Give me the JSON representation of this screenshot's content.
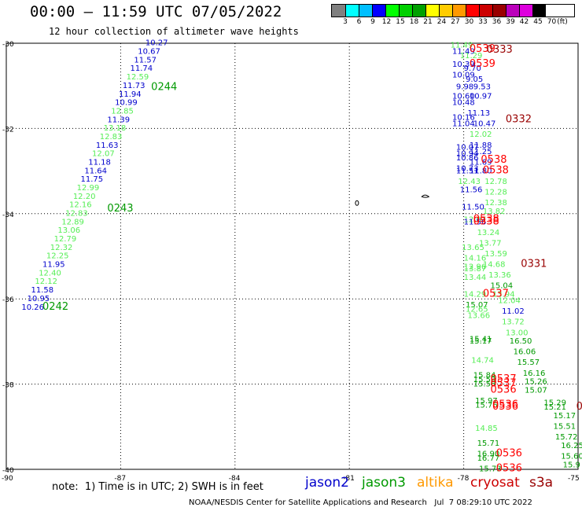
{
  "header": {
    "title": "00:00 – 11:59 UTC 07/05/2022",
    "subtitle": "12 hour collection of altimeter wave heights"
  },
  "color_scale": {
    "unit_label": "(ft)",
    "labels": [
      "3",
      "6",
      "9",
      "12",
      "15",
      "18",
      "21",
      "24",
      "27",
      "30",
      "33",
      "36",
      "39",
      "42",
      "45",
      "70"
    ],
    "colors": [
      "#808080",
      "#00ffff",
      "#00bfff",
      "#0000ff",
      "#00ff00",
      "#00d000",
      "#00a000",
      "#ffff00",
      "#ffcc00",
      "#ff9900",
      "#ff0000",
      "#cc0000",
      "#990000",
      "#bb00bb",
      "#dd00dd",
      "#000000"
    ]
  },
  "axes": {
    "lat_labels": [
      "-30",
      "-32",
      "-34",
      "-36",
      "-38",
      "-40"
    ],
    "lon_labels": [
      "-90",
      "-87",
      "-84",
      "-81",
      "-78",
      "-75"
    ]
  },
  "footer": {
    "note": "note:  1) Time is in UTC; 2) SWH is in feet",
    "legend": [
      {
        "name": "jason2",
        "color": "#0000cc"
      },
      {
        "name": "jason3",
        "color": "#009900"
      },
      {
        "name": "altika",
        "color": "#ff9900"
      },
      {
        "name": "cryosat",
        "color": "#cc0000"
      },
      {
        "name": "s3a",
        "color": "#990000"
      }
    ],
    "credit": "NOAA/NESDIS Center for Satellite Applications and Research   Jul  7 08:29:10 UTC 2022"
  },
  "map": {
    "lon_range": [
      -90,
      -75
    ],
    "lat_range": [
      -40,
      -30
    ],
    "tracks": [
      {
        "id": "west-track",
        "points": [
          {
            "lon": -86.35,
            "lat": -30.05,
            "v": "10.27",
            "c": "#0000cc"
          },
          {
            "lon": -86.55,
            "lat": -30.25,
            "v": "10.67",
            "c": "#0000cc"
          },
          {
            "lon": -86.65,
            "lat": -30.45,
            "v": "11.57",
            "c": "#0000cc"
          },
          {
            "lon": -86.75,
            "lat": -30.65,
            "v": "11.74",
            "c": "#0000cc"
          },
          {
            "lon": -86.85,
            "lat": -30.85,
            "v": "12.59",
            "c": "#55ee55"
          },
          {
            "lon": -86.95,
            "lat": -31.05,
            "v": "11.73",
            "c": "#0000cc"
          },
          {
            "lon": -87.05,
            "lat": -31.25,
            "v": "11.94",
            "c": "#0000cc"
          },
          {
            "lon": -87.15,
            "lat": -31.45,
            "v": "10.99",
            "c": "#0000cc"
          },
          {
            "lon": -87.25,
            "lat": -31.65,
            "v": "12.85",
            "c": "#55ee55"
          },
          {
            "lon": -87.35,
            "lat": -31.85,
            "v": "11.39",
            "c": "#0000cc"
          },
          {
            "lon": -87.45,
            "lat": -32.05,
            "v": "13.18",
            "c": "#55ee55"
          },
          {
            "lon": -87.55,
            "lat": -32.25,
            "v": "12.83",
            "c": "#55ee55"
          },
          {
            "lon": -87.65,
            "lat": -32.45,
            "v": "11.63",
            "c": "#0000cc"
          },
          {
            "lon": -87.75,
            "lat": -32.65,
            "v": "12.07",
            "c": "#55ee55"
          },
          {
            "lon": -87.85,
            "lat": -32.85,
            "v": "11.18",
            "c": "#0000cc"
          },
          {
            "lon": -87.95,
            "lat": -33.05,
            "v": "11.64",
            "c": "#0000cc"
          },
          {
            "lon": -88.05,
            "lat": -33.25,
            "v": "11.75",
            "c": "#0000cc"
          },
          {
            "lon": -88.15,
            "lat": -33.45,
            "v": "12.99",
            "c": "#55ee55"
          },
          {
            "lon": -88.25,
            "lat": -33.65,
            "v": "12.20",
            "c": "#55ee55"
          },
          {
            "lon": -88.35,
            "lat": -33.85,
            "v": "12.16",
            "c": "#55ee55"
          },
          {
            "lon": -88.45,
            "lat": -34.05,
            "v": "12.83",
            "c": "#55ee55"
          },
          {
            "lon": -88.55,
            "lat": -34.25,
            "v": "12.89",
            "c": "#55ee55"
          },
          {
            "lon": -88.65,
            "lat": -34.45,
            "v": "13.06",
            "c": "#55ee55"
          },
          {
            "lon": -88.75,
            "lat": -34.65,
            "v": "12.79",
            "c": "#55ee55"
          },
          {
            "lon": -88.85,
            "lat": -34.85,
            "v": "12.32",
            "c": "#55ee55"
          },
          {
            "lon": -88.95,
            "lat": -35.05,
            "v": "12.25",
            "c": "#55ee55"
          },
          {
            "lon": -89.05,
            "lat": -35.25,
            "v": "11.95",
            "c": "#0000cc"
          },
          {
            "lon": -89.15,
            "lat": -35.45,
            "v": "12.40",
            "c": "#55ee55"
          },
          {
            "lon": -89.25,
            "lat": -35.65,
            "v": "12.12",
            "c": "#55ee55"
          },
          {
            "lon": -89.35,
            "lat": -35.85,
            "v": "11.58",
            "c": "#0000cc"
          },
          {
            "lon": -89.45,
            "lat": -36.05,
            "v": "10.95",
            "c": "#0000cc"
          },
          {
            "lon": -89.6,
            "lat": -36.25,
            "v": "10.26",
            "c": "#0000cc"
          }
        ],
        "times": [
          {
            "lon": -86.2,
            "lat": -31.1,
            "t": "0244",
            "c": "#009900"
          },
          {
            "lon": -87.35,
            "lat": -33.95,
            "t": "0243",
            "c": "#009900"
          },
          {
            "lon": -89.05,
            "lat": -36.25,
            "t": "0242",
            "c": "#009900"
          }
        ]
      },
      {
        "id": "east-tracks",
        "points": [
          {
            "lon": -78.35,
            "lat": -30.1,
            "v": "11.49",
            "c": "#55ee55"
          },
          {
            "lon": -78.3,
            "lat": -30.25,
            "v": "11.49",
            "c": "#0000cc"
          },
          {
            "lon": -78.1,
            "lat": -30.35,
            "v": "11.29",
            "c": "#55ee55"
          },
          {
            "lon": -78.3,
            "lat": -30.55,
            "v": "10.39",
            "c": "#0000cc"
          },
          {
            "lon": -78.0,
            "lat": -30.65,
            "v": "9.70",
            "c": "#0000cc"
          },
          {
            "lon": -78.3,
            "lat": -30.8,
            "v": "10.09",
            "c": "#0000cc"
          },
          {
            "lon": -77.95,
            "lat": -30.9,
            "v": "9.05",
            "c": "#0000cc"
          },
          {
            "lon": -78.2,
            "lat": -31.08,
            "v": "9.98",
            "c": "#0000cc"
          },
          {
            "lon": -77.75,
            "lat": -31.08,
            "v": "9.53",
            "c": "#0000cc"
          },
          {
            "lon": -78.3,
            "lat": -31.3,
            "v": "10.60",
            "c": "#0000cc"
          },
          {
            "lon": -77.85,
            "lat": -31.3,
            "v": "10.97",
            "c": "#0000cc"
          },
          {
            "lon": -78.3,
            "lat": -31.45,
            "v": "10.48",
            "c": "#0000cc"
          },
          {
            "lon": -77.9,
            "lat": -31.7,
            "v": "11.13",
            "c": "#0000cc"
          },
          {
            "lon": -78.3,
            "lat": -31.8,
            "v": "10.16",
            "c": "#0000cc"
          },
          {
            "lon": -78.3,
            "lat": -31.95,
            "v": "11.04",
            "c": "#0000cc"
          },
          {
            "lon": -77.75,
            "lat": -31.95,
            "v": "10.47",
            "c": "#0000cc"
          },
          {
            "lon": -77.85,
            "lat": -32.2,
            "v": "12.02",
            "c": "#55ee55"
          },
          {
            "lon": -77.85,
            "lat": -32.45,
            "v": "11.88",
            "c": "#0000cc"
          },
          {
            "lon": -78.2,
            "lat": -32.5,
            "v": "10.07",
            "c": "#0000cc"
          },
          {
            "lon": -78.2,
            "lat": -32.65,
            "v": "10.94",
            "c": "#0000cc"
          },
          {
            "lon": -77.85,
            "lat": -32.6,
            "v": "11.25",
            "c": "#0000cc"
          },
          {
            "lon": -78.2,
            "lat": -32.75,
            "v": "10.86",
            "c": "#0000cc"
          },
          {
            "lon": -77.85,
            "lat": -32.85,
            "v": "11.69",
            "c": "#0000cc"
          },
          {
            "lon": -78.2,
            "lat": -33.0,
            "v": "10.73",
            "c": "#0000cc"
          },
          {
            "lon": -77.85,
            "lat": -33.05,
            "v": "11.80",
            "c": "#0000cc"
          },
          {
            "lon": -78.2,
            "lat": -33.05,
            "v": "11.51",
            "c": "#0000cc"
          },
          {
            "lon": -77.45,
            "lat": -33.3,
            "v": "12.78",
            "c": "#55ee55"
          },
          {
            "lon": -78.15,
            "lat": -33.3,
            "v": "12.43",
            "c": "#55ee55"
          },
          {
            "lon": -78.1,
            "lat": -33.5,
            "v": "11.56",
            "c": "#0000cc"
          },
          {
            "lon": -77.45,
            "lat": -33.55,
            "v": "12.28",
            "c": "#55ee55"
          },
          {
            "lon": -77.45,
            "lat": -33.8,
            "v": "12.38",
            "c": "#55ee55"
          },
          {
            "lon": -78.05,
            "lat": -33.9,
            "v": "11.50",
            "c": "#0000cc"
          },
          {
            "lon": -77.5,
            "lat": -34.0,
            "v": "13.82",
            "c": "#55ee55"
          },
          {
            "lon": -78.0,
            "lat": -34.2,
            "v": "12.07",
            "c": "#55ee55"
          },
          {
            "lon": -78.0,
            "lat": -34.25,
            "v": "11.56",
            "c": "#0000cc"
          },
          {
            "lon": -77.65,
            "lat": -34.5,
            "v": "13.24",
            "c": "#55ee55"
          },
          {
            "lon": -77.6,
            "lat": -34.75,
            "v": "13.77",
            "c": "#55ee55"
          },
          {
            "lon": -78.05,
            "lat": -34.85,
            "v": "13.65",
            "c": "#55ee55"
          },
          {
            "lon": -77.45,
            "lat": -35.0,
            "v": "13.59",
            "c": "#55ee55"
          },
          {
            "lon": -78.0,
            "lat": -35.1,
            "v": "14.16",
            "c": "#55ee55"
          },
          {
            "lon": -77.5,
            "lat": -35.25,
            "v": "14.68",
            "c": "#55ee55"
          },
          {
            "lon": -78.0,
            "lat": -35.3,
            "v": "12.96",
            "c": "#55ee55"
          },
          {
            "lon": -78.0,
            "lat": -35.35,
            "v": "13.87",
            "c": "#55ee55"
          },
          {
            "lon": -77.35,
            "lat": -35.5,
            "v": "13.36",
            "c": "#55ee55"
          },
          {
            "lon": -78.0,
            "lat": -35.55,
            "v": "13.44",
            "c": "#55ee55"
          },
          {
            "lon": -77.3,
            "lat": -35.75,
            "v": "15.04",
            "c": "#009900"
          },
          {
            "lon": -78.0,
            "lat": -35.95,
            "v": "14.29",
            "c": "#55ee55"
          },
          {
            "lon": -77.25,
            "lat": -35.95,
            "v": "13.94",
            "c": "#55ee55"
          },
          {
            "lon": -77.1,
            "lat": -36.1,
            "v": "12.04",
            "c": "#55ee55"
          },
          {
            "lon": -77.95,
            "lat": -36.2,
            "v": "15.07",
            "c": "#009900"
          },
          {
            "lon": -77.95,
            "lat": -36.3,
            "v": "12.65",
            "c": "#55ee55"
          },
          {
            "lon": -77.0,
            "lat": -36.35,
            "v": "11.02",
            "c": "#0000cc"
          },
          {
            "lon": -77.9,
            "lat": -36.45,
            "v": "13.66",
            "c": "#55ee55"
          },
          {
            "lon": -77.0,
            "lat": -36.6,
            "v": "13.72",
            "c": "#55ee55"
          },
          {
            "lon": -76.9,
            "lat": -36.85,
            "v": "13.00",
            "c": "#55ee55"
          },
          {
            "lon": -77.85,
            "lat": -37.0,
            "v": "15.41",
            "c": "#009900"
          },
          {
            "lon": -77.85,
            "lat": -37.05,
            "v": "15.17",
            "c": "#009900"
          },
          {
            "lon": -76.8,
            "lat": -37.05,
            "v": "16.50",
            "c": "#009900"
          },
          {
            "lon": -76.7,
            "lat": -37.3,
            "v": "16.06",
            "c": "#009900"
          },
          {
            "lon": -77.8,
            "lat": -37.5,
            "v": "14.74",
            "c": "#55ee55"
          },
          {
            "lon": -76.6,
            "lat": -37.55,
            "v": "15.57",
            "c": "#009900"
          },
          {
            "lon": -76.45,
            "lat": -37.8,
            "v": "16.16",
            "c": "#009900"
          },
          {
            "lon": -77.75,
            "lat": -37.85,
            "v": "15.84",
            "c": "#009900"
          },
          {
            "lon": -77.75,
            "lat": -37.95,
            "v": "15.59",
            "c": "#009900"
          },
          {
            "lon": -76.4,
            "lat": -38.0,
            "v": "15.26",
            "c": "#009900"
          },
          {
            "lon": -77.75,
            "lat": -38.05,
            "v": "15.58",
            "c": "#009900"
          },
          {
            "lon": -76.4,
            "lat": -38.2,
            "v": "15.07",
            "c": "#009900"
          },
          {
            "lon": -77.7,
            "lat": -38.45,
            "v": "15.97",
            "c": "#009900"
          },
          {
            "lon": -77.7,
            "lat": -38.55,
            "v": "15.76",
            "c": "#009900"
          },
          {
            "lon": -75.9,
            "lat": -38.5,
            "v": "15.29",
            "c": "#009900"
          },
          {
            "lon": -75.9,
            "lat": -38.6,
            "v": "15.21",
            "c": "#009900"
          },
          {
            "lon": -75.65,
            "lat": -38.8,
            "v": "15.17",
            "c": "#009900"
          },
          {
            "lon": -77.7,
            "lat": -39.1,
            "v": "14.85",
            "c": "#55ee55"
          },
          {
            "lon": -75.65,
            "lat": -39.05,
            "v": "15.51",
            "c": "#009900"
          },
          {
            "lon": -75.6,
            "lat": -39.3,
            "v": "15.72",
            "c": "#009900"
          },
          {
            "lon": -77.65,
            "lat": -39.45,
            "v": "15.71",
            "c": "#009900"
          },
          {
            "lon": -75.45,
            "lat": -39.5,
            "v": "16.25",
            "c": "#009900"
          },
          {
            "lon": -77.65,
            "lat": -39.7,
            "v": "16.90",
            "c": "#009900"
          },
          {
            "lon": -77.65,
            "lat": -39.8,
            "v": "16.77",
            "c": "#009900"
          },
          {
            "lon": -75.45,
            "lat": -39.75,
            "v": "15.60",
            "c": "#009900"
          },
          {
            "lon": -75.4,
            "lat": -39.95,
            "v": "15.9",
            "c": "#009900"
          },
          {
            "lon": -77.6,
            "lat": -40.05,
            "v": "15.73",
            "c": "#009900"
          }
        ],
        "times": [
          {
            "lon": -77.85,
            "lat": -30.2,
            "t": "0539",
            "c": "#ff0000"
          },
          {
            "lon": -77.4,
            "lat": -30.22,
            "t": "0333",
            "c": "#990000"
          },
          {
            "lon": -77.85,
            "lat": -30.55,
            "t": "0539",
            "c": "#ff0000"
          },
          {
            "lon": -76.9,
            "lat": -31.85,
            "t": "0332",
            "c": "#990000"
          },
          {
            "lon": -77.55,
            "lat": -32.8,
            "t": "0538",
            "c": "#ff0000"
          },
          {
            "lon": -77.5,
            "lat": -33.05,
            "t": "0538",
            "c": "#ff0000"
          },
          {
            "lon": -77.75,
            "lat": -34.2,
            "t": "0538",
            "c": "#ff0000"
          },
          {
            "lon": -77.75,
            "lat": -34.25,
            "t": "0538",
            "c": "#ff0000"
          },
          {
            "lon": -76.5,
            "lat": -35.25,
            "t": "0331",
            "c": "#990000"
          },
          {
            "lon": -77.5,
            "lat": -35.95,
            "t": "0537",
            "c": "#ff0000"
          },
          {
            "lon": -77.3,
            "lat": -37.95,
            "t": "0537",
            "c": "#ff0000"
          },
          {
            "lon": -77.3,
            "lat": -38.05,
            "t": "0537",
            "c": "#ff0000"
          },
          {
            "lon": -77.3,
            "lat": -38.2,
            "t": "0536",
            "c": "#ff0000"
          },
          {
            "lon": -77.25,
            "lat": -38.55,
            "t": "0536",
            "c": "#ff0000"
          },
          {
            "lon": -77.25,
            "lat": -38.6,
            "t": "0536",
            "c": "#ff0000"
          },
          {
            "lon": -75.05,
            "lat": -38.6,
            "t": "0",
            "c": "#990000"
          },
          {
            "lon": -77.15,
            "lat": -39.7,
            "t": "0536",
            "c": "#ff0000"
          },
          {
            "lon": -77.15,
            "lat": -40.05,
            "t": "0536",
            "c": "#ff0000"
          }
        ]
      }
    ]
  }
}
